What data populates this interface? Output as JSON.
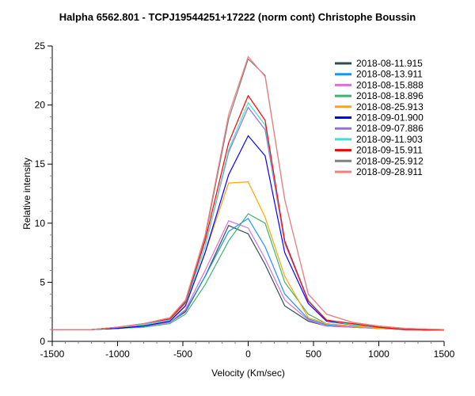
{
  "chart_data": {
    "type": "line",
    "title": "Halpha 6562.801 - TCPJ19544251+17222 (norm cont)   Christophe Boussin",
    "xlabel": "Velocity (Km/sec)",
    "ylabel": "Relative intensity",
    "xlim": [
      -1500,
      1500
    ],
    "ylim": [
      0,
      25
    ],
    "xticks": [
      -1500,
      -1000,
      -500,
      0,
      500,
      1000,
      1500
    ],
    "yticks": [
      0,
      5,
      10,
      15,
      20,
      25
    ],
    "grid": false,
    "legend": "top-right",
    "x": [
      -1500,
      -1200,
      -1000,
      -800,
      -600,
      -480,
      -330,
      -150,
      0,
      130,
      280,
      460,
      600,
      800,
      1000,
      1200,
      1500
    ],
    "series": [
      {
        "name": "2018-08-11.915",
        "color": "#2f4f4f",
        "values": [
          1.0,
          1.0,
          1.1,
          1.3,
          1.6,
          2.5,
          5.5,
          9.8,
          9.1,
          6.5,
          3.0,
          1.7,
          1.3,
          1.2,
          1.1,
          1.0,
          0.95
        ]
      },
      {
        "name": "2018-08-13.911",
        "color": "#1e90ff",
        "values": [
          1.0,
          1.0,
          1.1,
          1.3,
          1.6,
          2.6,
          5.5,
          9.3,
          10.4,
          8.0,
          4.0,
          1.9,
          1.4,
          1.2,
          1.1,
          1.0,
          0.95
        ]
      },
      {
        "name": "2018-08-15.888",
        "color": "#da70d6",
        "values": [
          1.0,
          1.0,
          1.1,
          1.3,
          1.6,
          2.7,
          6.0,
          10.2,
          9.6,
          7.0,
          3.5,
          1.8,
          1.3,
          1.2,
          1.1,
          1.0,
          0.95
        ]
      },
      {
        "name": "2018-08-18.896",
        "color": "#3cb371",
        "values": [
          1.0,
          1.0,
          1.1,
          1.2,
          1.5,
          2.3,
          4.8,
          8.5,
          10.8,
          10.0,
          5.0,
          2.3,
          1.5,
          1.3,
          1.1,
          1.0,
          0.95
        ]
      },
      {
        "name": "2018-08-25.913",
        "color": "#ffa500",
        "values": [
          1.0,
          1.0,
          1.1,
          1.3,
          1.7,
          3.0,
          7.5,
          13.4,
          13.5,
          10.5,
          5.5,
          2.0,
          1.5,
          1.3,
          1.1,
          1.0,
          0.95
        ]
      },
      {
        "name": "2018-09-01.900",
        "color": "#0000ff",
        "values": [
          1.0,
          1.0,
          1.1,
          1.3,
          1.7,
          3.0,
          7.5,
          14.1,
          17.4,
          15.7,
          7.5,
          3.2,
          1.7,
          1.4,
          1.2,
          1.0,
          0.95
        ]
      },
      {
        "name": "2018-09-07.886",
        "color": "#9370db",
        "values": [
          1.0,
          1.0,
          1.2,
          1.4,
          1.8,
          3.2,
          8.0,
          16.0,
          19.8,
          17.9,
          8.3,
          3.4,
          1.8,
          1.4,
          1.2,
          1.0,
          0.95
        ]
      },
      {
        "name": "2018-09-11.903",
        "color": "#40e0d0",
        "values": [
          1.0,
          1.0,
          1.2,
          1.4,
          1.8,
          3.2,
          8.0,
          16.2,
          20.2,
          18.3,
          8.5,
          3.5,
          1.8,
          1.4,
          1.2,
          1.0,
          0.95
        ]
      },
      {
        "name": "2018-09-15.911",
        "color": "#ff0000",
        "values": [
          1.0,
          1.0,
          1.2,
          1.5,
          1.9,
          3.3,
          8.5,
          16.8,
          20.8,
          18.7,
          8.5,
          3.4,
          1.8,
          1.5,
          1.2,
          1.0,
          0.95
        ]
      },
      {
        "name": "2018-09-25.912",
        "color": "#808080",
        "values": [
          1.0,
          1.0,
          1.2,
          1.5,
          2.0,
          3.4,
          8.8,
          18.8,
          23.9,
          22.5,
          12.0,
          4.0,
          2.3,
          1.6,
          1.3,
          1.1,
          1.0
        ]
      },
      {
        "name": "2018-09-28.911",
        "color": "#f08080",
        "values": [
          1.0,
          1.0,
          1.2,
          1.5,
          2.0,
          3.5,
          9.0,
          19.2,
          24.1,
          22.4,
          12.0,
          4.0,
          2.3,
          1.6,
          1.3,
          1.1,
          1.0
        ]
      }
    ]
  }
}
